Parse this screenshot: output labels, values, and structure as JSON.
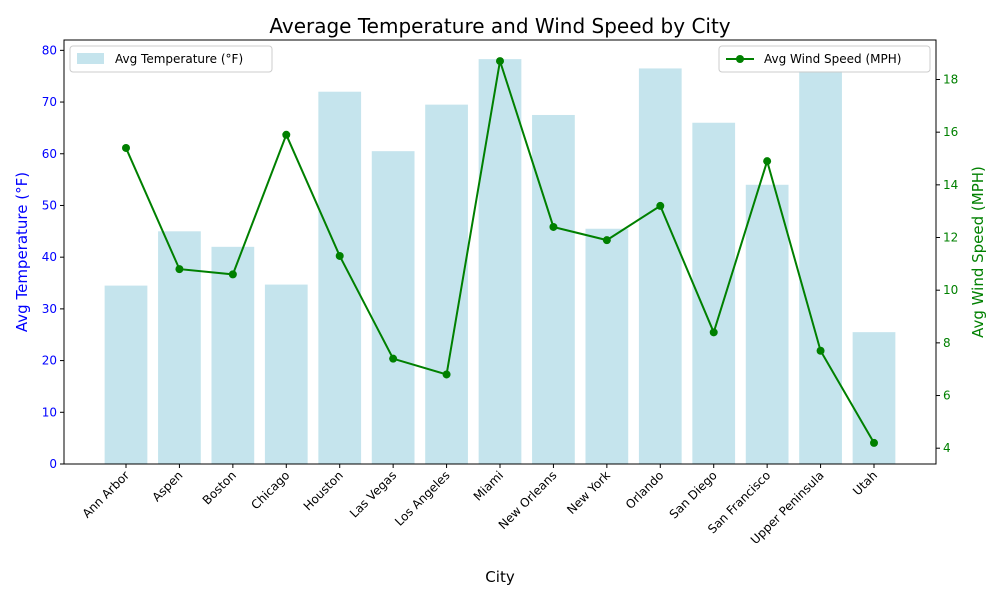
{
  "chart_data": {
    "type": "bar",
    "title": "Average Temperature and Wind Speed by City",
    "xlabel": "City",
    "categories": [
      "Ann Arbor",
      "Aspen",
      "Boston",
      "Chicago",
      "Houston",
      "Las Vegas",
      "Los Angeles",
      "Miami",
      "New Orleans",
      "New York",
      "Orlando",
      "San Diego",
      "San Francisco",
      "Upper Peninsula",
      "Utah"
    ],
    "left_axis": {
      "label": "Avg Temperature (°F)",
      "ylim": [
        0,
        82
      ],
      "ticks": [
        0,
        10,
        20,
        30,
        40,
        50,
        60,
        70,
        80
      ],
      "color": "#0000ff"
    },
    "right_axis": {
      "label": "Avg Wind Speed (MPH)",
      "ylim": [
        3.4,
        19.5
      ],
      "ticks": [
        4,
        6,
        8,
        10,
        12,
        14,
        16,
        18
      ],
      "color": "#008000"
    },
    "series": [
      {
        "name": "Avg Temperature (°F)",
        "type": "bar",
        "axis": "left",
        "color": "#add8e6",
        "values": [
          34.5,
          45,
          42,
          34.7,
          72,
          60.5,
          69.5,
          78.3,
          67.5,
          45.5,
          76.5,
          66,
          54,
          76,
          25.5
        ]
      },
      {
        "name": "Avg Wind Speed (MPH)",
        "type": "line",
        "axis": "right",
        "color": "#008000",
        "values": [
          15.4,
          10.8,
          10.6,
          15.9,
          11.3,
          7.4,
          6.8,
          18.7,
          12.4,
          11.9,
          13.2,
          8.4,
          14.9,
          7.7,
          4.2
        ]
      }
    ],
    "legend": {
      "left_placement": "top-left",
      "right_placement": "top-right"
    },
    "grid": false
  }
}
